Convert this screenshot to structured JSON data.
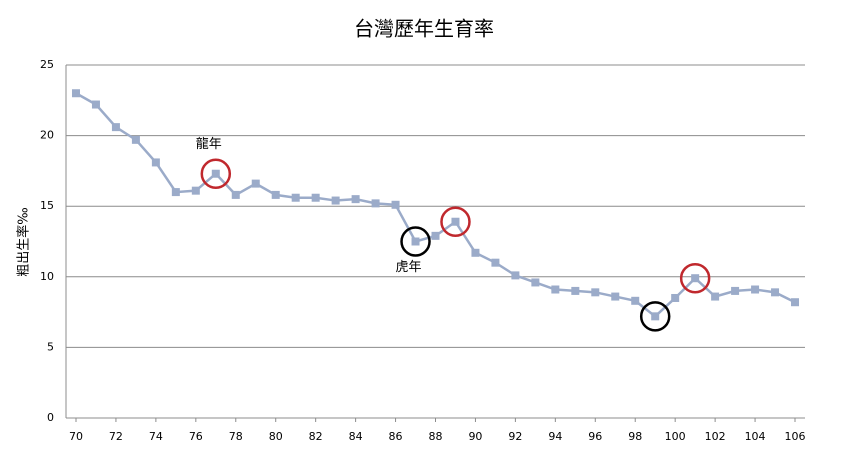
{
  "chart_data": {
    "type": "line",
    "title": "台灣歷年生育率",
    "y_label": "粗出生率‰",
    "x": [
      70,
      71,
      72,
      73,
      74,
      75,
      76,
      77,
      78,
      79,
      80,
      81,
      82,
      83,
      84,
      85,
      86,
      87,
      88,
      89,
      90,
      91,
      92,
      93,
      94,
      95,
      96,
      97,
      98,
      99,
      100,
      101,
      102,
      103,
      104,
      105,
      106
    ],
    "series": [
      {
        "name": "粗出生率",
        "color": "#9babc9",
        "values": [
          23.0,
          22.2,
          20.6,
          19.7,
          18.1,
          16.0,
          16.1,
          17.3,
          15.8,
          16.6,
          15.8,
          15.6,
          15.6,
          15.4,
          15.5,
          15.2,
          15.1,
          12.5,
          12.9,
          13.9,
          11.7,
          11.0,
          10.1,
          9.6,
          9.1,
          9.0,
          8.9,
          8.6,
          8.3,
          7.2,
          8.5,
          9.9,
          8.6,
          9.0,
          9.1,
          8.9,
          8.2
        ]
      }
    ],
    "xlim": [
      69.5,
      106.5
    ],
    "xticks": [
      70,
      72,
      74,
      76,
      78,
      80,
      82,
      84,
      86,
      88,
      90,
      92,
      94,
      96,
      98,
      100,
      102,
      104,
      106
    ],
    "ylim": [
      0,
      25
    ],
    "yticks": [
      0,
      5,
      10,
      15,
      20,
      25
    ],
    "grid": true,
    "annotations": [
      {
        "text": "龍年",
        "x": 77
      },
      {
        "text": "虎年",
        "x": 87
      }
    ],
    "highlights": [
      {
        "x": 77,
        "color": "#c0282d"
      },
      {
        "x": 87,
        "color": "#000000"
      },
      {
        "x": 89,
        "color": "#c0282d"
      },
      {
        "x": 99,
        "color": "#000000"
      },
      {
        "x": 101,
        "color": "#c0282d"
      }
    ]
  }
}
